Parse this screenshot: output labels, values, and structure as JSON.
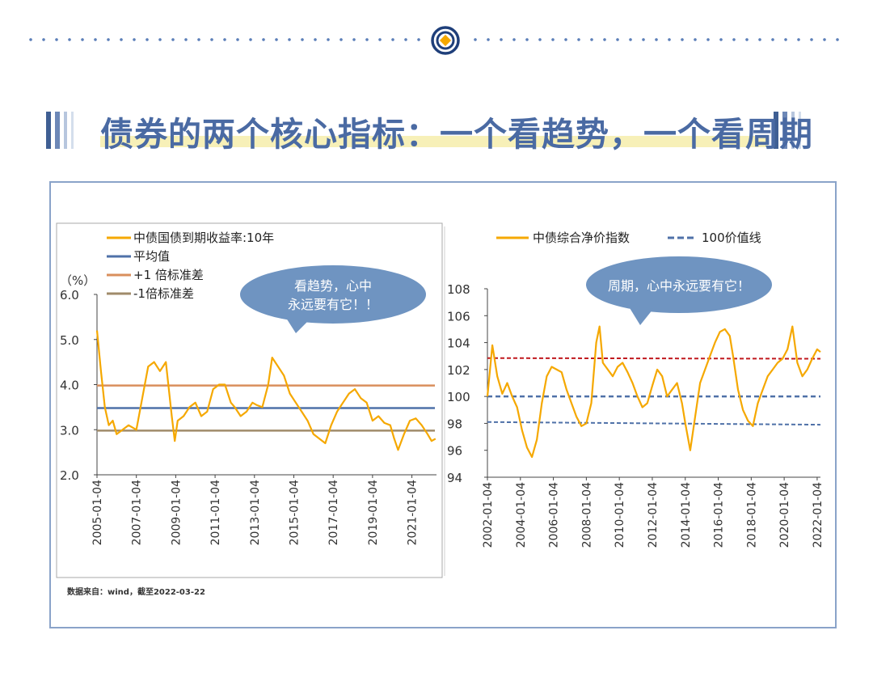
{
  "page": {
    "headline": "债券的两个核心指标：一个看趋势，一个看周期",
    "source_note": "数据来自：wind，截至2022-03-22",
    "colors": {
      "accent_blue": "#4a6aa3",
      "highlight_yellow": "#f7f0b8",
      "frame_border": "#8aa3c9",
      "bubble": "#6f94c1",
      "series_orange": "#f5a800"
    },
    "icons": [
      "logo-icon"
    ]
  },
  "chart_data": [
    {
      "type": "line",
      "ylabel": "（%）",
      "ylim": [
        2.0,
        6.0
      ],
      "y_ticks": [
        "6.0",
        "5.0",
        "4.0",
        "3.0",
        "2.0"
      ],
      "x_ticks": [
        "2005-01-04",
        "2007-01-04",
        "2009-01-04",
        "2011-01-04",
        "2013-01-04",
        "2015-01-04",
        "2017-01-04",
        "2019-01-04",
        "2021-01-04"
      ],
      "grid": false,
      "legend_position": "top-left",
      "callout": "看趋势，心中永远要有它！！",
      "series": [
        {
          "name": "中债国债到期收益率:10年",
          "color": "#f5a800",
          "x": [
            2005.0,
            2005.2,
            2005.4,
            2005.6,
            2005.8,
            2006.0,
            2006.3,
            2006.6,
            2007.0,
            2007.3,
            2007.6,
            2007.9,
            2008.2,
            2008.5,
            2008.8,
            2008.95,
            2009.1,
            2009.4,
            2009.7,
            2010.0,
            2010.3,
            2010.6,
            2010.9,
            2011.2,
            2011.5,
            2011.8,
            2012.0,
            2012.3,
            2012.6,
            2012.9,
            2013.1,
            2013.4,
            2013.7,
            2013.9,
            2014.2,
            2014.5,
            2014.8,
            2015.1,
            2015.4,
            2015.7,
            2016.0,
            2016.3,
            2016.6,
            2016.9,
            2017.2,
            2017.5,
            2017.8,
            2018.1,
            2018.4,
            2018.7,
            2019.0,
            2019.3,
            2019.6,
            2019.9,
            2020.1,
            2020.3,
            2020.6,
            2020.9,
            2021.2,
            2021.5,
            2021.8,
            2022.0,
            2022.2
          ],
          "values": [
            5.2,
            4.3,
            3.5,
            3.1,
            3.2,
            2.9,
            3.0,
            3.1,
            3.0,
            3.7,
            4.4,
            4.5,
            4.3,
            4.5,
            3.3,
            2.75,
            3.2,
            3.3,
            3.5,
            3.6,
            3.3,
            3.4,
            3.9,
            4.0,
            4.0,
            3.6,
            3.5,
            3.3,
            3.4,
            3.6,
            3.55,
            3.5,
            4.0,
            4.6,
            4.4,
            4.2,
            3.8,
            3.6,
            3.4,
            3.2,
            2.9,
            2.8,
            2.7,
            3.1,
            3.4,
            3.6,
            3.8,
            3.9,
            3.7,
            3.6,
            3.2,
            3.3,
            3.15,
            3.1,
            2.8,
            2.55,
            2.9,
            3.2,
            3.25,
            3.1,
            2.9,
            2.75,
            2.8
          ]
        },
        {
          "name": "平均值",
          "color": "#4f71a8",
          "values": [
            3.48
          ]
        },
        {
          "name": "+1 倍标准差",
          "color": "#d98f5c",
          "values": [
            3.98
          ]
        },
        {
          "name": "-1倍标准差",
          "color": "#a08b6a",
          "values": [
            2.98
          ]
        }
      ]
    },
    {
      "type": "line",
      "ylim": [
        94,
        108
      ],
      "y_ticks": [
        "108",
        "106",
        "104",
        "102",
        "100",
        "98",
        "96",
        "94"
      ],
      "x_ticks": [
        "2002-01-04",
        "2004-01-04",
        "2006-01-04",
        "2008-01-04",
        "2010-01-04",
        "2012-01-04",
        "2014-01-04",
        "2016-01-04",
        "2018-01-04",
        "2020-01-04",
        "2022-01-04"
      ],
      "grid": false,
      "legend_position": "top",
      "callout": "周期，心中永远要有它！",
      "series": [
        {
          "name": "中债综合净价指数",
          "color": "#f5a800",
          "x": [
            2002.0,
            2002.3,
            2002.6,
            2002.9,
            2003.2,
            2003.5,
            2003.8,
            2004.1,
            2004.4,
            2004.7,
            2005.0,
            2005.3,
            2005.6,
            2005.9,
            2006.2,
            2006.5,
            2006.8,
            2007.1,
            2007.4,
            2007.7,
            2008.0,
            2008.3,
            2008.6,
            2008.8,
            2009.0,
            2009.3,
            2009.6,
            2009.9,
            2010.2,
            2010.5,
            2010.8,
            2011.1,
            2011.4,
            2011.7,
            2012.0,
            2012.3,
            2012.6,
            2012.9,
            2013.2,
            2013.5,
            2013.8,
            2014.0,
            2014.3,
            2014.6,
            2014.9,
            2015.2,
            2015.5,
            2015.8,
            2016.1,
            2016.4,
            2016.7,
            2016.9,
            2017.2,
            2017.5,
            2017.8,
            2018.1,
            2018.4,
            2018.7,
            2019.0,
            2019.3,
            2019.6,
            2019.9,
            2020.2,
            2020.5,
            2020.8,
            2021.1,
            2021.4,
            2021.7,
            2022.0,
            2022.2
          ],
          "values": [
            100.0,
            103.8,
            101.5,
            100.2,
            101.0,
            100.0,
            99.2,
            97.5,
            96.2,
            95.5,
            96.8,
            99.5,
            101.5,
            102.2,
            102.0,
            101.8,
            100.5,
            99.5,
            98.5,
            97.8,
            98.0,
            99.5,
            104.0,
            105.2,
            102.5,
            102.0,
            101.5,
            102.2,
            102.5,
            101.8,
            101.0,
            100.0,
            99.2,
            99.5,
            100.8,
            102.0,
            101.5,
            100.0,
            100.5,
            101.0,
            99.5,
            98.0,
            96.0,
            98.5,
            101.0,
            102.0,
            103.0,
            104.0,
            104.8,
            105.0,
            104.5,
            103.0,
            100.5,
            99.0,
            98.2,
            97.8,
            99.5,
            100.5,
            101.5,
            102.0,
            102.5,
            102.8,
            103.5,
            105.2,
            102.5,
            101.5,
            102.0,
            102.8,
            103.5,
            103.3
          ]
        },
        {
          "name": "100价值线",
          "color": "#4f71a8",
          "values": [
            100
          ]
        },
        {
          "name": "",
          "color": "#c0191f",
          "values": [
            102.85,
            102.8
          ]
        },
        {
          "name": "",
          "color": "#4f71a8",
          "values": [
            98.1,
            97.9
          ]
        }
      ]
    }
  ]
}
